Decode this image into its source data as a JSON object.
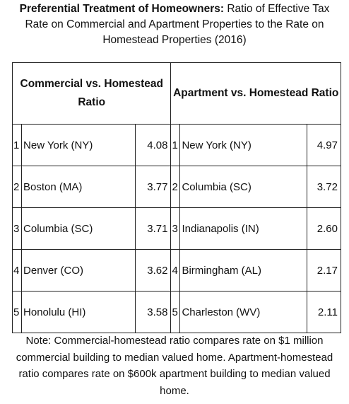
{
  "header": {
    "title_bold": "Preferential Treatment of Homeowners:",
    "title_rest": "Ratio of Effective Tax Rate on Commercial and Apartment Properties to the Rate on Homestead Properties (2016)"
  },
  "table": {
    "columns": [
      "Commercial vs. Homestead Ratio",
      "Apartment vs. Homestead Ratio"
    ],
    "rows": [
      [
        "1",
        "New York (NY)",
        "4.08",
        "1",
        "New York (NY)",
        "4.97"
      ],
      [
        "2",
        "Boston (MA)",
        "3.77",
        "2",
        "Columbia (SC)",
        "3.72"
      ],
      [
        "3",
        "Columbia (SC)",
        "3.71",
        "3",
        "Indianapolis (IN)",
        "2.60"
      ],
      [
        "4",
        "Denver (CO)",
        "3.62",
        "4",
        "Birmingham (AL)",
        "2.17"
      ],
      [
        "5",
        "Honolulu (HI)",
        "3.58",
        "5",
        "Charleston (WV)",
        "2.11"
      ]
    ]
  },
  "note": "Note: Commercial-homestead ratio compares rate on $1 million commercial building to median  valued home. Apartment-homestead ratio compares rate on $600k apartment building to median valued home."
}
